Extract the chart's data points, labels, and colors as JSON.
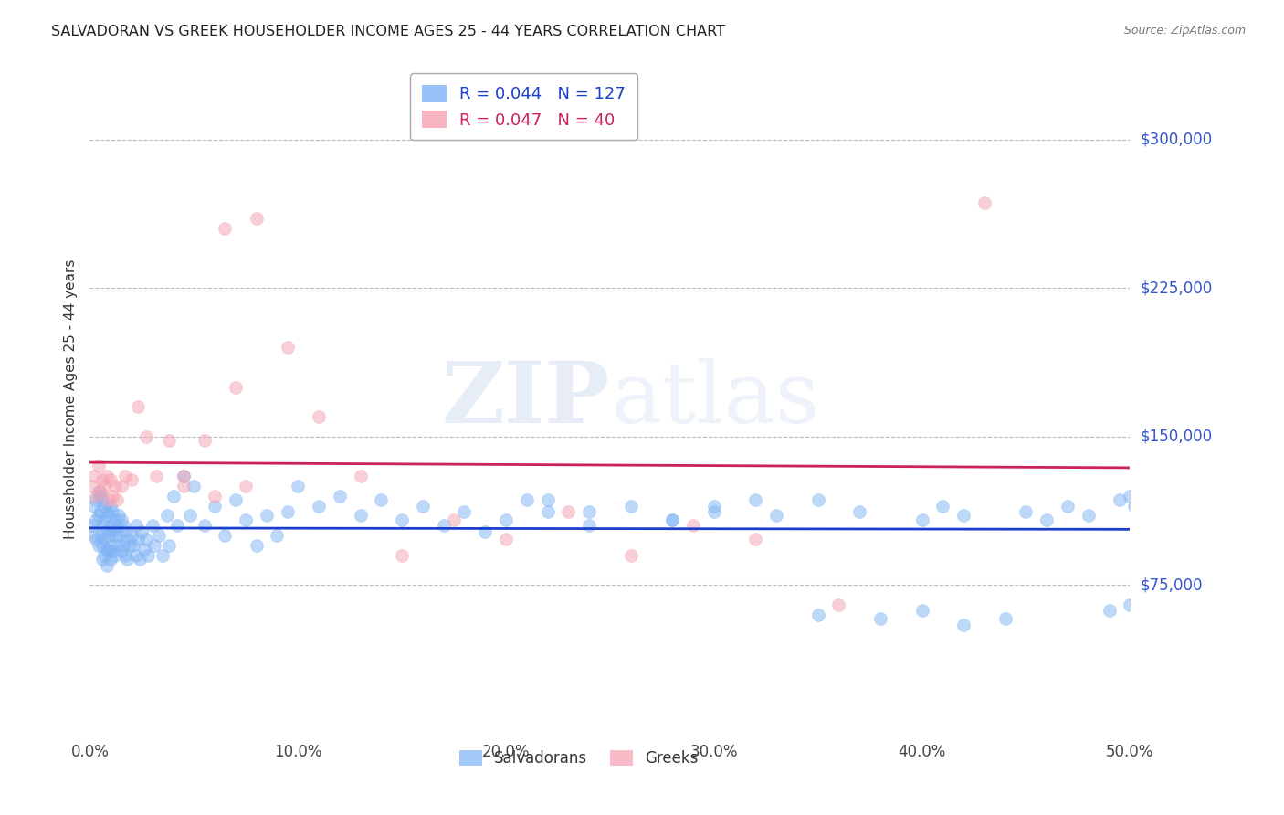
{
  "title": "SALVADORAN VS GREEK HOUSEHOLDER INCOME AGES 25 - 44 YEARS CORRELATION CHART",
  "source": "Source: ZipAtlas.com",
  "ylabel": "Householder Income Ages 25 - 44 years",
  "xlabel_ticks": [
    "0.0%",
    "10.0%",
    "20.0%",
    "30.0%",
    "40.0%",
    "50.0%"
  ],
  "xlabel_vals": [
    0.0,
    0.1,
    0.2,
    0.3,
    0.4,
    0.5
  ],
  "ytick_labels": [
    "$75,000",
    "$150,000",
    "$225,000",
    "$300,000"
  ],
  "ytick_vals": [
    75000,
    150000,
    225000,
    300000
  ],
  "ylim": [
    0,
    337500
  ],
  "xlim": [
    0.0,
    0.5
  ],
  "blue_color": "#7fb3f5",
  "pink_color": "#f5a0b0",
  "trendline_blue": "#1a3fcc",
  "trendline_pink": "#cc2255",
  "legend_r_blue": "0.044",
  "legend_n_blue": "127",
  "legend_r_pink": "0.047",
  "legend_n_pink": "40",
  "watermark_zip": "ZIP",
  "watermark_atlas": "atlas",
  "salvadorans_x": [
    0.001,
    0.002,
    0.002,
    0.003,
    0.003,
    0.003,
    0.004,
    0.004,
    0.004,
    0.005,
    0.005,
    0.005,
    0.006,
    0.006,
    0.006,
    0.006,
    0.007,
    0.007,
    0.007,
    0.007,
    0.008,
    0.008,
    0.008,
    0.008,
    0.009,
    0.009,
    0.009,
    0.01,
    0.01,
    0.01,
    0.01,
    0.011,
    0.011,
    0.011,
    0.012,
    0.012,
    0.012,
    0.013,
    0.013,
    0.014,
    0.014,
    0.015,
    0.015,
    0.016,
    0.016,
    0.017,
    0.017,
    0.018,
    0.018,
    0.019,
    0.02,
    0.021,
    0.022,
    0.022,
    0.023,
    0.024,
    0.025,
    0.026,
    0.027,
    0.028,
    0.03,
    0.031,
    0.033,
    0.035,
    0.037,
    0.038,
    0.04,
    0.042,
    0.045,
    0.048,
    0.05,
    0.055,
    0.06,
    0.065,
    0.07,
    0.075,
    0.08,
    0.085,
    0.09,
    0.095,
    0.1,
    0.11,
    0.12,
    0.13,
    0.14,
    0.15,
    0.16,
    0.17,
    0.18,
    0.19,
    0.2,
    0.21,
    0.22,
    0.24,
    0.26,
    0.28,
    0.3,
    0.32,
    0.35,
    0.38,
    0.4,
    0.42,
    0.44,
    0.45,
    0.46,
    0.47,
    0.48,
    0.49,
    0.495,
    0.5,
    0.5,
    0.502,
    0.505,
    0.508,
    0.51,
    0.512,
    0.515,
    0.22,
    0.24,
    0.28,
    0.3,
    0.33,
    0.35,
    0.37,
    0.4,
    0.41,
    0.42
  ],
  "salvadorans_y": [
    105000,
    115000,
    100000,
    118000,
    108000,
    98000,
    122000,
    110000,
    95000,
    120000,
    112000,
    100000,
    118000,
    105000,
    95000,
    88000,
    115000,
    108000,
    98000,
    90000,
    112000,
    102000,
    93000,
    85000,
    110000,
    100000,
    92000,
    115000,
    105000,
    95000,
    88000,
    112000,
    103000,
    92000,
    108000,
    100000,
    90000,
    105000,
    95000,
    110000,
    100000,
    108000,
    92000,
    105000,
    95000,
    102000,
    90000,
    98000,
    88000,
    95000,
    100000,
    95000,
    105000,
    90000,
    98000,
    88000,
    102000,
    93000,
    98000,
    90000,
    105000,
    95000,
    100000,
    90000,
    110000,
    95000,
    120000,
    105000,
    130000,
    110000,
    125000,
    105000,
    115000,
    100000,
    118000,
    108000,
    95000,
    110000,
    100000,
    112000,
    125000,
    115000,
    120000,
    110000,
    118000,
    108000,
    115000,
    105000,
    112000,
    102000,
    108000,
    118000,
    112000,
    105000,
    115000,
    108000,
    112000,
    118000,
    60000,
    58000,
    62000,
    55000,
    58000,
    112000,
    108000,
    115000,
    110000,
    62000,
    118000,
    65000,
    120000,
    115000,
    112000,
    118000,
    110000,
    115000,
    120000,
    118000,
    112000,
    108000,
    115000,
    110000,
    118000,
    112000,
    108000,
    115000,
    110000
  ],
  "greeks_x": [
    0.001,
    0.002,
    0.003,
    0.004,
    0.005,
    0.006,
    0.007,
    0.008,
    0.009,
    0.01,
    0.011,
    0.012,
    0.013,
    0.015,
    0.017,
    0.02,
    0.023,
    0.027,
    0.032,
    0.038,
    0.045,
    0.055,
    0.065,
    0.08,
    0.095,
    0.11,
    0.13,
    0.15,
    0.175,
    0.2,
    0.23,
    0.26,
    0.29,
    0.32,
    0.36,
    0.43,
    0.045,
    0.06,
    0.07,
    0.075
  ],
  "greeks_y": [
    125000,
    130000,
    120000,
    135000,
    122000,
    128000,
    125000,
    130000,
    118000,
    128000,
    120000,
    125000,
    118000,
    125000,
    130000,
    128000,
    165000,
    150000,
    130000,
    148000,
    125000,
    148000,
    255000,
    260000,
    195000,
    160000,
    130000,
    90000,
    108000,
    98000,
    112000,
    90000,
    105000,
    98000,
    65000,
    268000,
    130000,
    120000,
    175000,
    125000
  ]
}
